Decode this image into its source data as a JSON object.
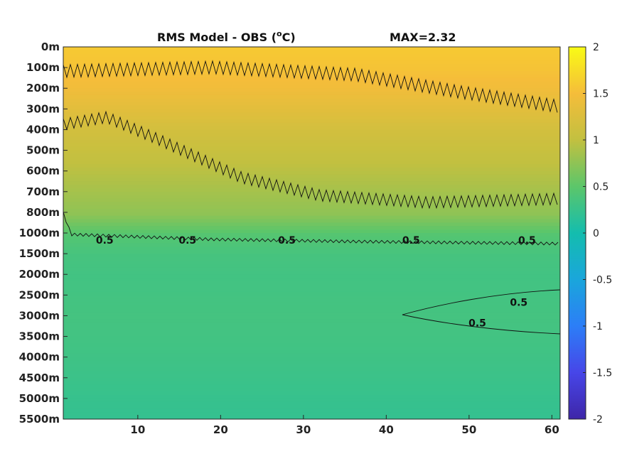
{
  "chart_data": {
    "type": "heatmap",
    "title": "RMS Model - OBS (°C)",
    "title_main": "RMS Model - OBS (",
    "title_sup": "o",
    "title_end": "C)",
    "max_annotation": "MAX=2.32",
    "x_ticks": [
      "10",
      "20",
      "30",
      "40",
      "50",
      "60"
    ],
    "x_tick_values": [
      10,
      20,
      30,
      40,
      50,
      60
    ],
    "xlim": [
      1,
      61
    ],
    "y_ticks": [
      "0m",
      "100m",
      "200m",
      "300m",
      "400m",
      "500m",
      "600m",
      "700m",
      "800m",
      "1000m",
      "1500m",
      "2000m",
      "2500m",
      "3000m",
      "3500m",
      "4000m",
      "4500m",
      "5000m",
      "5500m"
    ],
    "colorbar": {
      "ticks": [
        "2",
        "1.5",
        "1",
        "0.5",
        "0",
        "-0.5",
        "-1",
        "-1.5",
        "-2"
      ],
      "tick_values": [
        2,
        1.5,
        1,
        0.5,
        0,
        -0.5,
        -1,
        -1.5,
        -2
      ],
      "range": [
        -2,
        2
      ],
      "colormap": "parula"
    },
    "field_by_depth_index": [
      1.6,
      1.55,
      1.45,
      1.3,
      1.15,
      1.05,
      0.95,
      0.85,
      0.75,
      0.45,
      0.35,
      0.32,
      0.33,
      0.34,
      0.32,
      0.3,
      0.27,
      0.24,
      0.22
    ],
    "contour_levels": [
      0.5,
      1,
      1.5
    ],
    "contour_labels": [
      {
        "text": "0.5",
        "x": 6,
        "depth": "1000m"
      },
      {
        "text": "0.5",
        "x": 16,
        "depth": "1000m"
      },
      {
        "text": "0.5",
        "x": 28,
        "depth": "1000m"
      },
      {
        "text": "0.5",
        "x": 43,
        "depth": "1000m"
      },
      {
        "text": "0.5",
        "x": 57,
        "depth": "1000m"
      },
      {
        "text": "0.5",
        "x": 56,
        "depth": "2500m"
      },
      {
        "text": "0.5",
        "x": 51,
        "depth": "3000m"
      }
    ]
  }
}
